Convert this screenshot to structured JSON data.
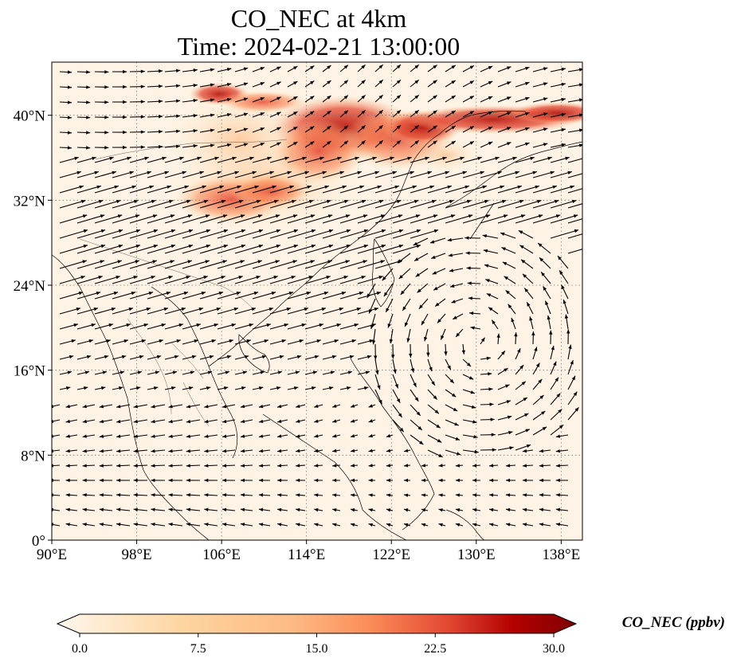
{
  "title": {
    "line1": "CO_NEC at 4km",
    "line2": "Time: 2024-02-21 13:00:00"
  },
  "map": {
    "lon_range": [
      90,
      140
    ],
    "lat_range": [
      0,
      45
    ],
    "lon_ticks": [
      "90°E",
      "98°E",
      "106°E",
      "114°E",
      "122°E",
      "130°E",
      "138°E"
    ],
    "lat_ticks": [
      "0°",
      "8°N",
      "16°N",
      "24°N",
      "32°N",
      "40°N"
    ],
    "lon_tick_values": [
      90,
      98,
      106,
      114,
      122,
      130,
      138
    ],
    "lat_tick_values": [
      0,
      8,
      16,
      24,
      32,
      40
    ],
    "gridlines": true,
    "field": "CO_NEC",
    "plume_region": "northern China – Korea – Japan band, ~30°N–43°N",
    "wind_vectors": "shown"
  },
  "colorbar": {
    "label": "CO_NEC (ppbv)",
    "ticks": [
      "0.0",
      "7.5",
      "15.0",
      "22.5",
      "30.0"
    ],
    "min": 0,
    "max": 30,
    "colormap": "OrRd",
    "extend": "both",
    "colors": [
      "#fff7ec",
      "#fee8c8",
      "#fdd49e",
      "#fdbb84",
      "#fc8d59",
      "#ef6548",
      "#d7301f",
      "#b30000",
      "#7f0000"
    ]
  }
}
